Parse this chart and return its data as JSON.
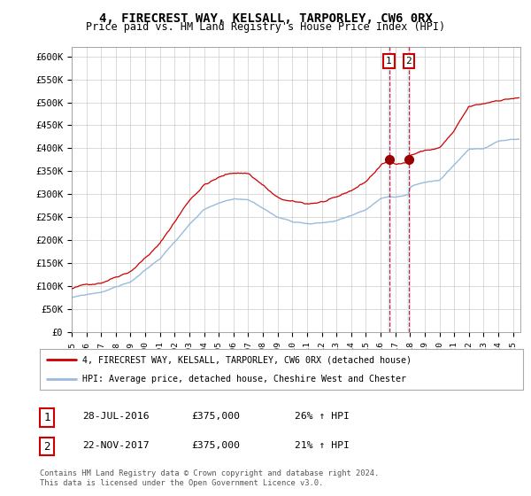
{
  "title": "4, FIRECREST WAY, KELSALL, TARPORLEY, CW6 0RX",
  "subtitle": "Price paid vs. HM Land Registry's House Price Index (HPI)",
  "ylabel_ticks": [
    "£0",
    "£50K",
    "£100K",
    "£150K",
    "£200K",
    "£250K",
    "£300K",
    "£350K",
    "£400K",
    "£450K",
    "£500K",
    "£550K",
    "£600K"
  ],
  "ytick_values": [
    0,
    50000,
    100000,
    150000,
    200000,
    250000,
    300000,
    350000,
    400000,
    450000,
    500000,
    550000,
    600000
  ],
  "ylim": [
    0,
    620000
  ],
  "legend_line1": "4, FIRECREST WAY, KELSALL, TARPORLEY, CW6 0RX (detached house)",
  "legend_line2": "HPI: Average price, detached house, Cheshire West and Chester",
  "transaction1_date": "28-JUL-2016",
  "transaction1_price": "£375,000",
  "transaction1_hpi": "26% ↑ HPI",
  "transaction2_date": "22-NOV-2017",
  "transaction2_price": "£375,000",
  "transaction2_hpi": "21% ↑ HPI",
  "footnote1": "Contains HM Land Registry data © Crown copyright and database right 2024.",
  "footnote2": "This data is licensed under the Open Government Licence v3.0.",
  "line1_color": "#cc0000",
  "line2_color": "#99bbdd",
  "vline_color": "#cc0000",
  "vline_fill": "#ddeeff",
  "marker_color": "#990000",
  "background_color": "#ffffff",
  "grid_color": "#cccccc",
  "transaction1_x": 2016.57,
  "transaction2_x": 2017.9,
  "transaction_y": 375000,
  "xlim_left": 1995.0,
  "xlim_right": 2025.5
}
